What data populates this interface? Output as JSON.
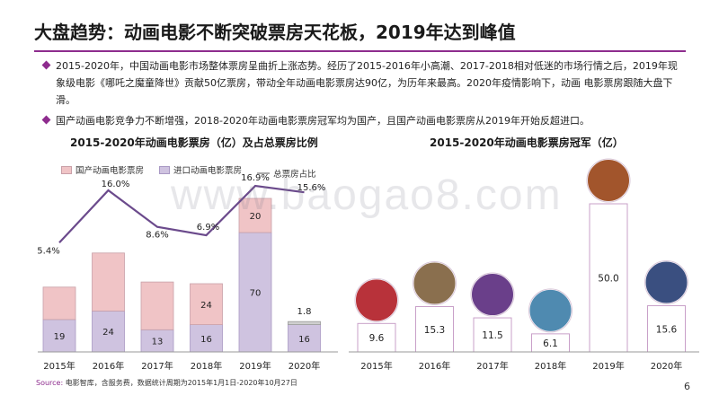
{
  "title": "大盘趋势：动画电影不断突破票房天花板，2019年达到峰值",
  "bullets": [
    "2015-2020年，中国动画电影市场整体票房呈曲折上涨态势。经历了2015-2016年小高潮、2017-2018相对低迷的市场行情之后，2019年现象级电影《哪吒之魔童降世》贡献50亿票房，带动全年动画电影票房达90亿，为历年来最高。2020年疫情影响下，动画 电影票房跟随大盘下滑。",
    "国产动画电影竞争力不断增强，2018-2020年动画电影票房冠军均为国产，且国产动画电影票房从2019年开始反超进口。"
  ],
  "watermark": "www.baogao8.com",
  "source_label": "Source:",
  "source_text": "电影智库，含服务费，数据统计周期为2015年1月1日-2020年10月27日",
  "page_number": "6",
  "colors": {
    "accent": "#8e2c8e",
    "domestic": "#f0c4c6",
    "imported": "#cfc3e0",
    "line": "#6b4a8c",
    "total_line": "#aaaaaa"
  },
  "chart_data": [
    {
      "type": "bar",
      "title": "2015-2020年动画电影票房（亿）及占总票房比例",
      "categories": [
        "2015年",
        "2016年",
        "2017年",
        "2018年",
        "2019年",
        "2020年"
      ],
      "legend": [
        "国产动画电影票房",
        "进口动画电影票房",
        "总票房占比"
      ],
      "series": [
        {
          "name": "进口动画电影票房",
          "values": [
            19,
            24,
            13,
            16,
            70,
            16
          ]
        },
        {
          "name": "国产动画电影票房",
          "values": [
            19,
            34,
            28,
            24,
            20,
            1.8
          ]
        }
      ],
      "line_series": {
        "name": "总票房占比",
        "values": [
          5.4,
          16.0,
          8.6,
          6.9,
          16.9,
          15.6
        ],
        "labels": [
          "5.4%",
          "16.0%",
          "8.6%",
          "6.9%",
          "16.9%",
          "15.6%"
        ]
      },
      "data_labels": {
        "imported": [
          "19",
          "24",
          "13",
          "16",
          "70",
          "16"
        ],
        "domestic": [
          "",
          "",
          "",
          "24",
          "20",
          "1.8"
        ]
      },
      "legend_position": "top-left",
      "grid": false
    },
    {
      "type": "bar",
      "title": "2015-2020年动画电影票房冠军（亿）",
      "categories": [
        "2015年",
        "2016年",
        "2017年",
        "2018年",
        "2019年",
        "2020年"
      ],
      "values": [
        9.6,
        15.3,
        11.5,
        6.1,
        50.0,
        15.6
      ],
      "labels": [
        "9.6",
        "15.3",
        "11.5",
        "6.1",
        "50.0",
        "15.6"
      ],
      "grid": false
    }
  ]
}
